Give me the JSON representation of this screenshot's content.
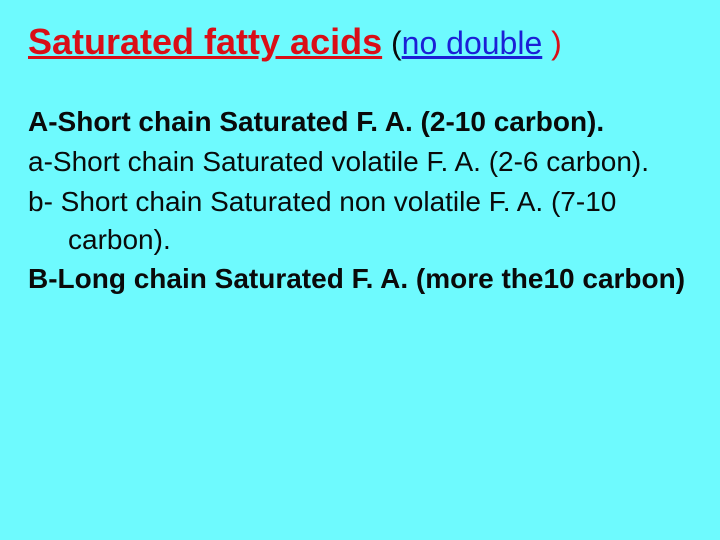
{
  "colors": {
    "background": "#6efafe",
    "red": "#d90e17",
    "blue": "#1b1fd6",
    "black": "#0a0a0a"
  },
  "title": {
    "main": "Saturated fatty acids",
    "paren_open": " (",
    "sub": "no double",
    "paren_close": " )"
  },
  "lines": {
    "a_head": "A-Short chain Saturated F. A. (2-10 carbon).",
    "a_sub_a": "a-Short chain Saturated volatile F. A. (2-6 carbon).",
    "a_sub_b": "b- Short chain Saturated non volatile F. A. (7-10 carbon).",
    "b_head": "B-Long chain Saturated F. A. (more the10 carbon)"
  }
}
